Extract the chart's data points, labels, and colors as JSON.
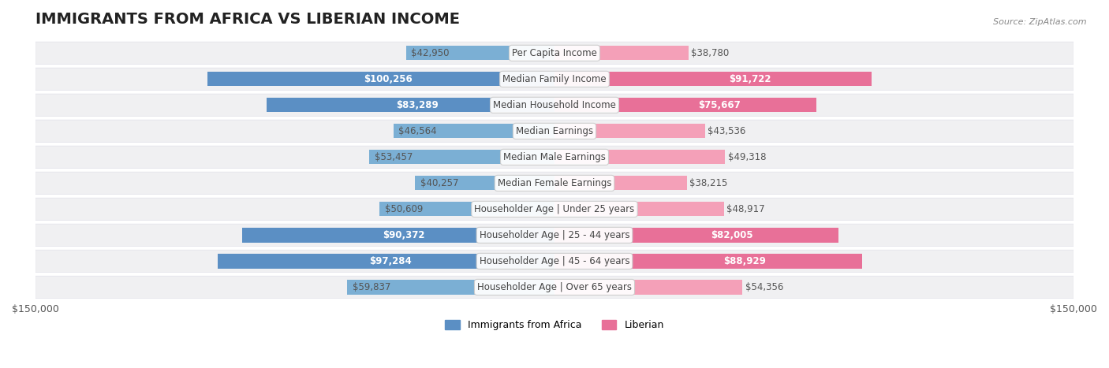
{
  "title": "IMMIGRANTS FROM AFRICA VS LIBERIAN INCOME",
  "source": "Source: ZipAtlas.com",
  "categories": [
    "Per Capita Income",
    "Median Family Income",
    "Median Household Income",
    "Median Earnings",
    "Median Male Earnings",
    "Median Female Earnings",
    "Householder Age | Under 25 years",
    "Householder Age | 25 - 44 years",
    "Householder Age | 45 - 64 years",
    "Householder Age | Over 65 years"
  ],
  "africa_values": [
    42950,
    100256,
    83289,
    46564,
    53457,
    40257,
    50609,
    90372,
    97284,
    59837
  ],
  "liberian_values": [
    38780,
    91722,
    75667,
    43536,
    49318,
    38215,
    48917,
    82005,
    88929,
    54356
  ],
  "africa_labels": [
    "$42,950",
    "$100,256",
    "$83,289",
    "$46,564",
    "$53,457",
    "$40,257",
    "$50,609",
    "$90,372",
    "$97,284",
    "$59,837"
  ],
  "liberian_labels": [
    "$38,780",
    "$91,722",
    "$75,667",
    "$43,536",
    "$49,318",
    "$38,215",
    "$48,917",
    "$82,005",
    "$88,929",
    "$54,356"
  ],
  "africa_color": "#7bafd4",
  "africa_color_dark": "#5b8fc4",
  "liberian_color": "#f4a0b8",
  "liberian_color_dark": "#e87098",
  "max_value": 150000,
  "background_color": "#ffffff",
  "row_bg_color": "#f0f0f0",
  "title_fontsize": 14,
  "label_fontsize": 8.5,
  "category_fontsize": 8.5
}
